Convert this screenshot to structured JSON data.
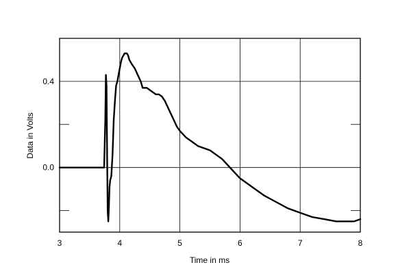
{
  "chart_data": {
    "type": "line",
    "title": "",
    "xlabel": "Time in ms",
    "ylabel": "Data in Volts",
    "xlim": [
      3,
      8
    ],
    "ylim": [
      -0.3,
      0.6
    ],
    "xticks": [
      3,
      4,
      5,
      6,
      7,
      8
    ],
    "xtick_labels": [
      "3",
      "4",
      "5",
      "6",
      "7",
      "8"
    ],
    "yticks": [
      -0.2,
      0.0,
      0.2,
      0.4
    ],
    "labeled_yticks": [
      {
        "value": 0.0,
        "label": "0.0"
      },
      {
        "value": 0.4,
        "label": "0.4"
      }
    ],
    "grid": true,
    "series": [
      {
        "x": [
          3.0,
          3.5,
          3.74,
          3.76,
          3.77,
          3.78,
          3.79,
          3.8,
          3.81,
          3.82,
          3.83,
          3.84,
          3.86,
          3.88,
          3.9,
          3.92,
          3.94,
          3.96,
          3.98,
          4.0,
          4.02,
          4.04,
          4.06,
          4.08,
          4.1,
          4.12,
          4.14,
          4.16,
          4.2,
          4.25,
          4.3,
          4.35,
          4.38,
          4.4,
          4.45,
          4.5,
          4.55,
          4.6,
          4.65,
          4.7,
          4.75,
          4.8,
          4.85,
          4.9,
          4.95,
          5.0,
          5.1,
          5.2,
          5.3,
          5.4,
          5.5,
          5.6,
          5.7,
          5.8,
          5.9,
          6.0,
          6.2,
          6.4,
          6.6,
          6.8,
          7.0,
          7.2,
          7.4,
          7.6,
          7.7,
          7.8,
          7.9,
          8.0
        ],
        "y": [
          0.0,
          0.0,
          0.0,
          0.22,
          0.43,
          0.38,
          0.05,
          -0.2,
          -0.25,
          -0.18,
          -0.09,
          -0.06,
          -0.04,
          0.06,
          0.22,
          0.31,
          0.38,
          0.4,
          0.43,
          0.46,
          0.49,
          0.51,
          0.52,
          0.53,
          0.53,
          0.53,
          0.52,
          0.5,
          0.48,
          0.46,
          0.43,
          0.4,
          0.37,
          0.37,
          0.37,
          0.36,
          0.35,
          0.34,
          0.34,
          0.33,
          0.31,
          0.28,
          0.25,
          0.22,
          0.19,
          0.17,
          0.14,
          0.12,
          0.1,
          0.09,
          0.08,
          0.06,
          0.04,
          0.01,
          -0.02,
          -0.05,
          -0.09,
          -0.13,
          -0.16,
          -0.19,
          -0.21,
          -0.23,
          -0.24,
          -0.25,
          -0.25,
          -0.25,
          -0.25,
          -0.24
        ]
      }
    ]
  }
}
